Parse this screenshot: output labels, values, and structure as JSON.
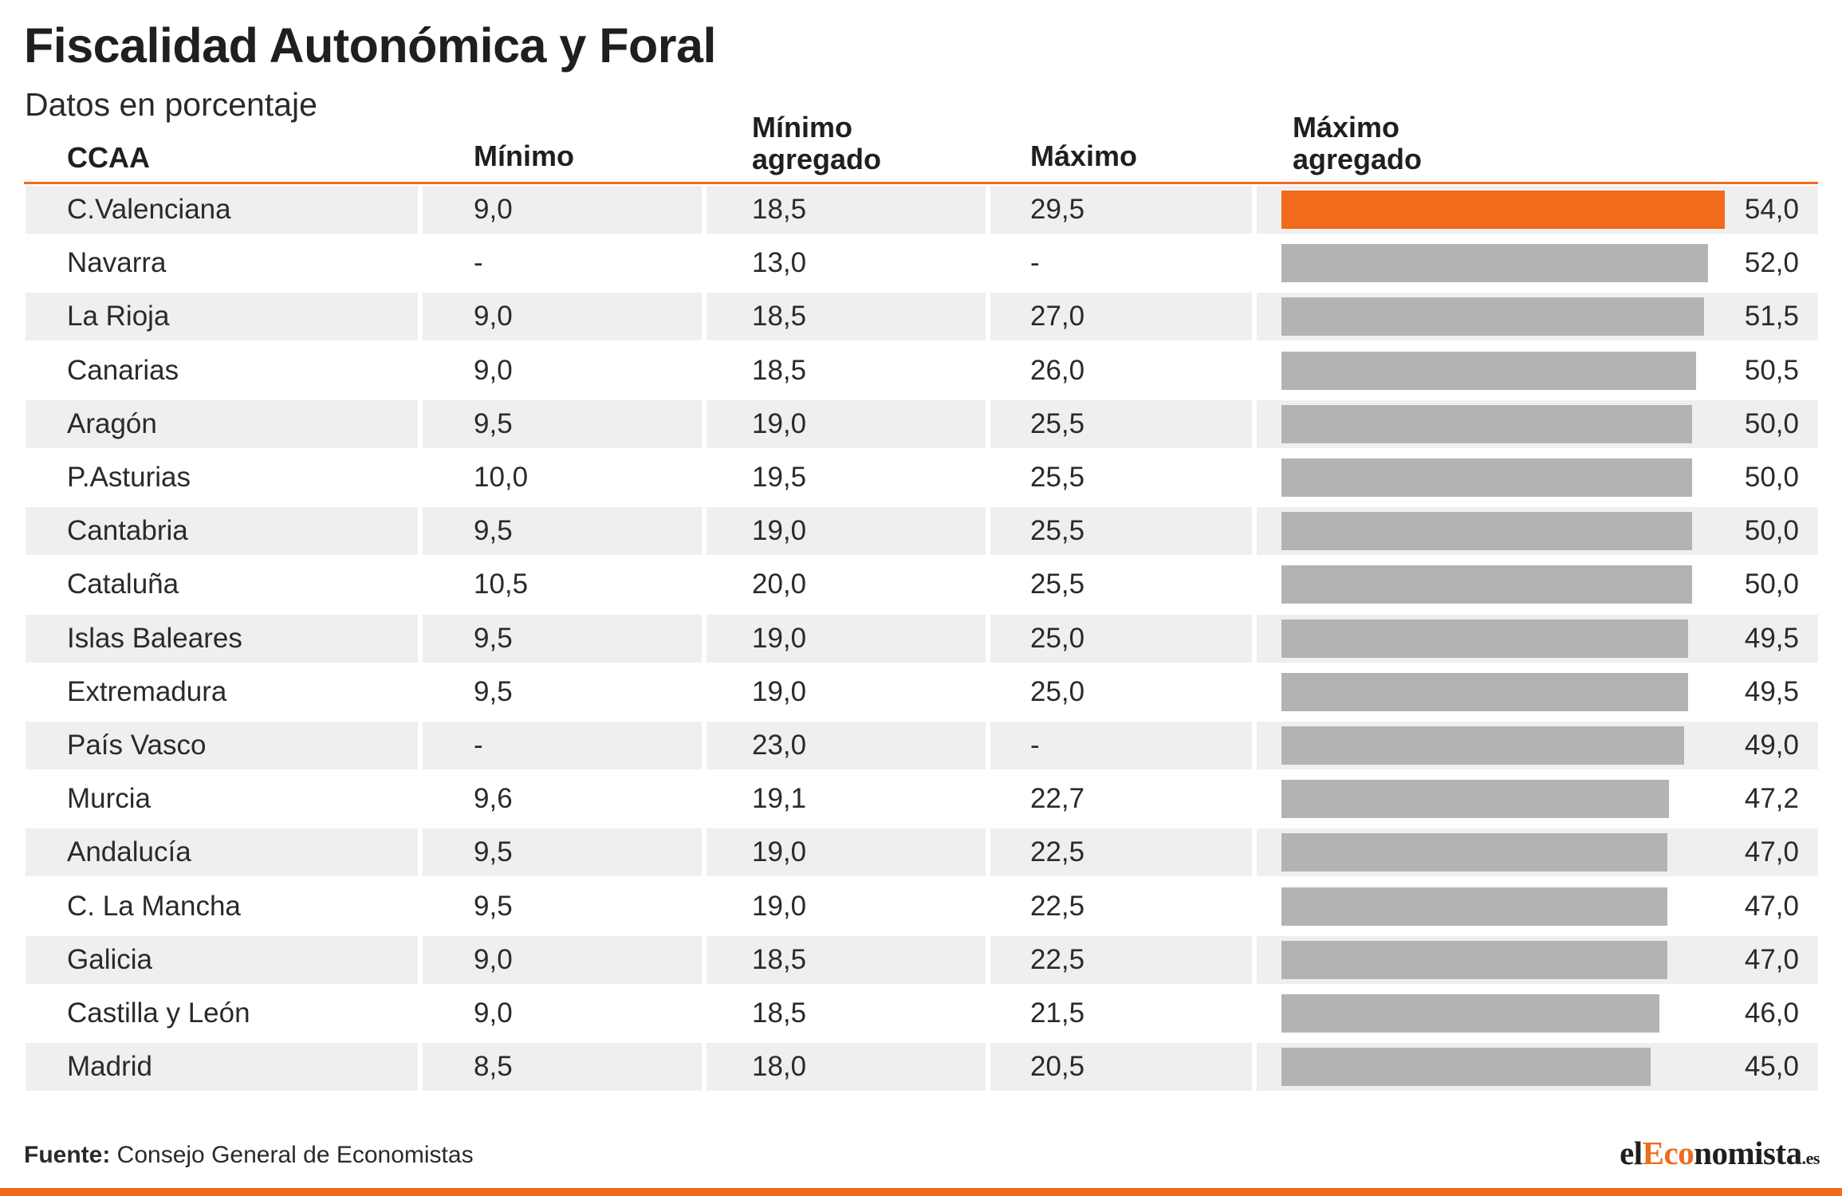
{
  "title": "Fiscalidad Autonómica y Foral",
  "subtitle": "Datos en porcentaje",
  "headers": {
    "ccaa": "CCAA",
    "minimo": "Mínimo",
    "minimo_agregado_1": "Mínimo",
    "minimo_agregado_2": "agregado",
    "maximo": "Máximo",
    "maximo_agregado_1": "Máximo",
    "maximo_agregado_2": "agregado"
  },
  "source": {
    "label": "Fuente:",
    "text": "Consejo General de Economistas"
  },
  "logo": {
    "prefix": "el",
    "accent": "Eco",
    "suffix": "nomista",
    "tld": ".es"
  },
  "colors": {
    "accent": "#f26a1b",
    "bar": "#b3b3b3",
    "stripe": "#efefef"
  },
  "chart_data": {
    "type": "table",
    "title": "Fiscalidad Autonómica y Foral",
    "subtitle": "Datos en porcentaje",
    "columns": [
      "CCAA",
      "Mínimo",
      "Mínimo agregado",
      "Máximo",
      "Máximo agregado"
    ],
    "bar_column": "Máximo agregado",
    "bar_scale_max": 54.0,
    "highlight_row": 0,
    "rows": [
      {
        "ccaa": "C.Valenciana",
        "minimo": "9,0",
        "minimo_agregado": "18,5",
        "maximo": "29,5",
        "maximo_agregado": "54,0",
        "value": 54.0
      },
      {
        "ccaa": "Navarra",
        "minimo": "-",
        "minimo_agregado": "13,0",
        "maximo": "-",
        "maximo_agregado": "52,0",
        "value": 52.0
      },
      {
        "ccaa": "La Rioja",
        "minimo": "9,0",
        "minimo_agregado": "18,5",
        "maximo": "27,0",
        "maximo_agregado": "51,5",
        "value": 51.5
      },
      {
        "ccaa": "Canarias",
        "minimo": "9,0",
        "minimo_agregado": "18,5",
        "maximo": "26,0",
        "maximo_agregado": "50,5",
        "value": 50.5
      },
      {
        "ccaa": "Aragón",
        "minimo": "9,5",
        "minimo_agregado": "19,0",
        "maximo": "25,5",
        "maximo_agregado": "50,0",
        "value": 50.0
      },
      {
        "ccaa": "P.Asturias",
        "minimo": "10,0",
        "minimo_agregado": "19,5",
        "maximo": "25,5",
        "maximo_agregado": "50,0",
        "value": 50.0
      },
      {
        "ccaa": "Cantabria",
        "minimo": "9,5",
        "minimo_agregado": "19,0",
        "maximo": "25,5",
        "maximo_agregado": "50,0",
        "value": 50.0
      },
      {
        "ccaa": "Cataluña",
        "minimo": "10,5",
        "minimo_agregado": "20,0",
        "maximo": "25,5",
        "maximo_agregado": "50,0",
        "value": 50.0
      },
      {
        "ccaa": "Islas Baleares",
        "minimo": "9,5",
        "minimo_agregado": "19,0",
        "maximo": "25,0",
        "maximo_agregado": "49,5",
        "value": 49.5
      },
      {
        "ccaa": "Extremadura",
        "minimo": "9,5",
        "minimo_agregado": "19,0",
        "maximo": "25,0",
        "maximo_agregado": "49,5",
        "value": 49.5
      },
      {
        "ccaa": "País Vasco",
        "minimo": "-",
        "minimo_agregado": "23,0",
        "maximo": "-",
        "maximo_agregado": "49,0",
        "value": 49.0
      },
      {
        "ccaa": "Murcia",
        "minimo": "9,6",
        "minimo_agregado": "19,1",
        "maximo": "22,7",
        "maximo_agregado": "47,2",
        "value": 47.2
      },
      {
        "ccaa": "Andalucía",
        "minimo": "9,5",
        "minimo_agregado": "19,0",
        "maximo": "22,5",
        "maximo_agregado": "47,0",
        "value": 47.0
      },
      {
        "ccaa": "C. La Mancha",
        "minimo": "9,5",
        "minimo_agregado": "19,0",
        "maximo": "22,5",
        "maximo_agregado": "47,0",
        "value": 47.0
      },
      {
        "ccaa": "Galicia",
        "minimo": "9,0",
        "minimo_agregado": "18,5",
        "maximo": "22,5",
        "maximo_agregado": "47,0",
        "value": 47.0
      },
      {
        "ccaa": "Castilla y León",
        "minimo": "9,0",
        "minimo_agregado": "18,5",
        "maximo": "21,5",
        "maximo_agregado": "46,0",
        "value": 46.0
      },
      {
        "ccaa": "Madrid",
        "minimo": "8,5",
        "minimo_agregado": "18,0",
        "maximo": "20,5",
        "maximo_agregado": "45,0",
        "value": 45.0
      }
    ]
  }
}
